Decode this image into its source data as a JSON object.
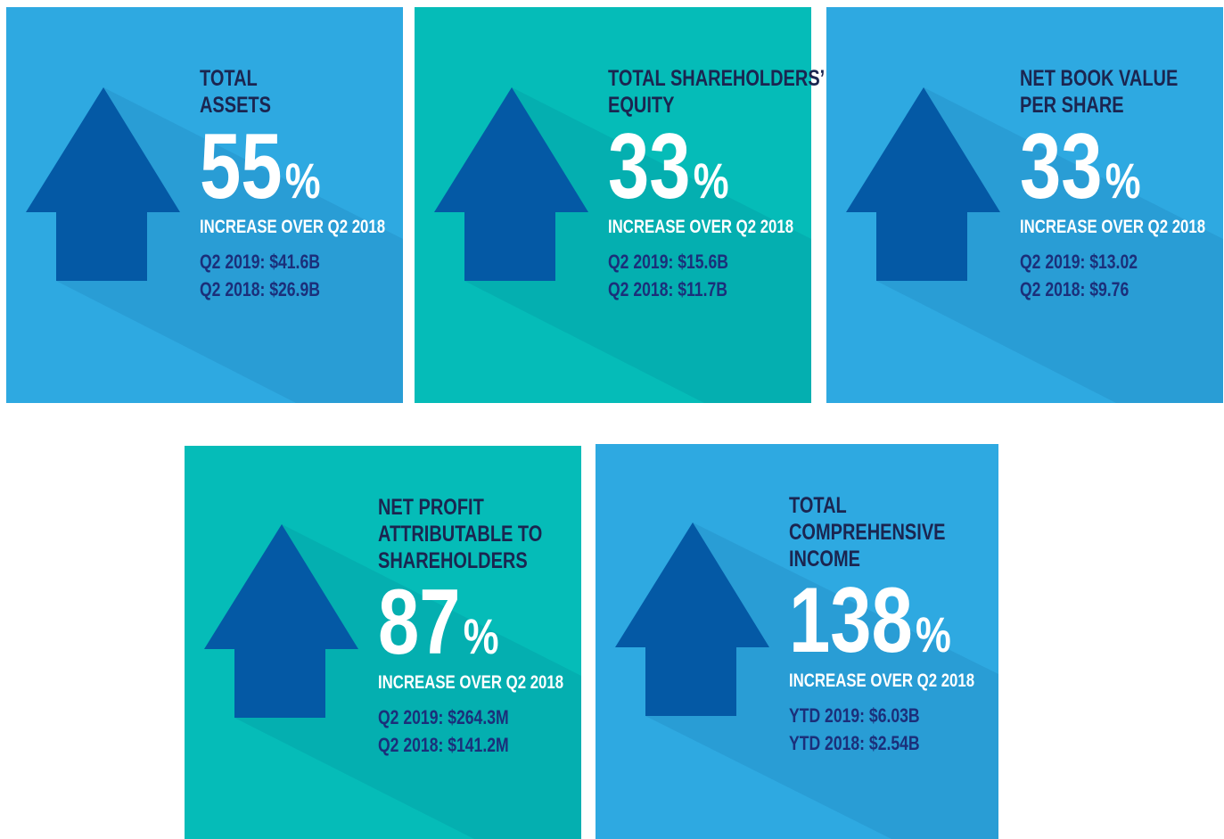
{
  "cards": [
    {
      "title": [
        "TOTAL",
        "ASSETS"
      ],
      "value": "55",
      "unit": "%",
      "subtitle": "INCREASE OVER Q2 2018",
      "details": [
        "Q2 2019: $41.6B",
        "Q2 2018: $26.9B"
      ],
      "color": "#2ea9e1"
    },
    {
      "title": [
        "TOTAL SHAREHOLDERS’",
        "EQUITY"
      ],
      "value": "33",
      "unit": "%",
      "subtitle": "INCREASE OVER Q2 2018",
      "details": [
        "Q2 2019: $15.6B",
        "Q2 2018: $11.7B"
      ],
      "color": "#05bcb8"
    },
    {
      "title": [
        "NET BOOK VALUE",
        "PER SHARE"
      ],
      "value": "33",
      "unit": "%",
      "subtitle": "INCREASE OVER Q2 2018",
      "details": [
        "Q2 2019: $13.02",
        "Q2 2018: $9.76"
      ],
      "color": "#2ea9e1"
    },
    {
      "title": [
        "NET PROFIT",
        "ATTRIBUTABLE TO",
        "SHAREHOLDERS"
      ],
      "value": "87",
      "unit": "%",
      "subtitle": "INCREASE OVER Q2 2018",
      "details": [
        "Q2 2019: $264.3M",
        "Q2 2018: $141.2M"
      ],
      "color": "#05bcb8"
    },
    {
      "title": [
        "TOTAL",
        "COMPREHENSIVE",
        "INCOME"
      ],
      "value": "138",
      "unit": "%",
      "subtitle": "INCREASE OVER Q2 2018",
      "details": [
        "YTD 2019: $6.03B",
        "YTD 2018: $2.54B"
      ],
      "color": "#2ea9e1"
    }
  ]
}
